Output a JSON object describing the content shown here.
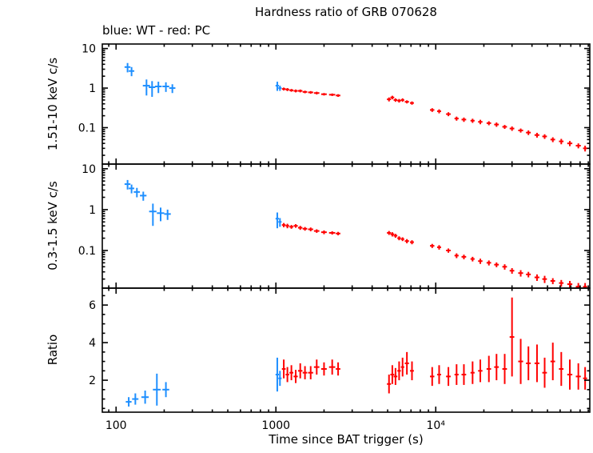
{
  "chart_data": {
    "type": "scatter",
    "title": "Hardness ratio of GRB 070628",
    "subtitle": "blue: WT - red: PC",
    "xlabel": "Time since BAT trigger (s)",
    "xscale": "log",
    "xlim": [
      82,
      92000
    ],
    "xticks": [
      {
        "v": 100,
        "label": "100"
      },
      {
        "v": 1000,
        "label": "1000"
      },
      {
        "v": 10000,
        "label": "10⁴"
      }
    ],
    "colors": {
      "WT": "#1e8fff",
      "PC": "#ff0000",
      "frame": "#000000"
    },
    "panels": [
      {
        "name": "hard-band",
        "ylabel": "1.51-10 keV c/s",
        "yscale": "log",
        "ylim": [
          0.012,
          13
        ],
        "yticks": [
          {
            "v": 10,
            "label": "10"
          },
          {
            "v": 1,
            "label": "1"
          },
          {
            "v": 0.1,
            "label": "0.1"
          }
        ],
        "series": [
          {
            "name": "WT",
            "color": "#1e8fff",
            "points": [
              [
                118,
                5,
                3.4,
                0.9
              ],
              [
                125,
                5,
                2.7,
                0.7
              ],
              [
                155,
                8,
                1.15,
                0.5
              ],
              [
                168,
                8,
                1.05,
                0.45
              ],
              [
                184,
                9,
                1.1,
                0.35
              ],
              [
                205,
                10,
                1.1,
                0.3
              ],
              [
                225,
                10,
                1.0,
                0.25
              ],
              [
                1020,
                25,
                1.15,
                0.3
              ],
              [
                1060,
                25,
                1.0,
                0.15
              ]
            ]
          },
          {
            "name": "PC",
            "color": "#ff0000",
            "points": [
              [
                1120,
                30,
                0.95,
                0.08
              ],
              [
                1180,
                30,
                0.92,
                0.08
              ],
              [
                1250,
                35,
                0.88,
                0.07
              ],
              [
                1330,
                40,
                0.85,
                0.07
              ],
              [
                1420,
                45,
                0.85,
                0.07
              ],
              [
                1520,
                50,
                0.8,
                0.06
              ],
              [
                1650,
                60,
                0.78,
                0.06
              ],
              [
                1800,
                70,
                0.75,
                0.06
              ],
              [
                2000,
                80,
                0.7,
                0.05
              ],
              [
                2250,
                100,
                0.68,
                0.05
              ],
              [
                2450,
                80,
                0.65,
                0.05
              ],
              [
                5100,
                150,
                0.52,
                0.06
              ],
              [
                5350,
                150,
                0.58,
                0.06
              ],
              [
                5600,
                150,
                0.5,
                0.05
              ],
              [
                5900,
                150,
                0.48,
                0.05
              ],
              [
                6200,
                150,
                0.5,
                0.05
              ],
              [
                6600,
                200,
                0.45,
                0.04
              ],
              [
                7100,
                200,
                0.42,
                0.04
              ],
              [
                9500,
                300,
                0.28,
                0.03
              ],
              [
                10500,
                300,
                0.26,
                0.03
              ],
              [
                12000,
                400,
                0.22,
                0.025
              ],
              [
                13500,
                400,
                0.17,
                0.02
              ],
              [
                15000,
                500,
                0.16,
                0.02
              ],
              [
                17000,
                500,
                0.15,
                0.018
              ],
              [
                19000,
                600,
                0.14,
                0.018
              ],
              [
                21500,
                700,
                0.13,
                0.015
              ],
              [
                24000,
                800,
                0.12,
                0.015
              ],
              [
                27000,
                900,
                0.105,
                0.012
              ],
              [
                30000,
                1000,
                0.095,
                0.012
              ],
              [
                34000,
                1200,
                0.085,
                0.01
              ],
              [
                38000,
                1300,
                0.075,
                0.01
              ],
              [
                43000,
                1500,
                0.065,
                0.009
              ],
              [
                48000,
                1600,
                0.06,
                0.008
              ],
              [
                54000,
                1800,
                0.05,
                0.007
              ],
              [
                61000,
                2000,
                0.045,
                0.007
              ],
              [
                69000,
                2500,
                0.04,
                0.006
              ],
              [
                78000,
                2800,
                0.035,
                0.005
              ],
              [
                86000,
                2500,
                0.03,
                0.005
              ]
            ]
          }
        ]
      },
      {
        "name": "soft-band",
        "ylabel": "0.3-1.5 keV c/s",
        "yscale": "log",
        "ylim": [
          0.012,
          13
        ],
        "yticks": [
          {
            "v": 10,
            "label": "10"
          },
          {
            "v": 1,
            "label": "1"
          },
          {
            "v": 0.1,
            "label": "0.1"
          }
        ],
        "series": [
          {
            "name": "WT",
            "color": "#1e8fff",
            "points": [
              [
                118,
                5,
                4.2,
                1.1
              ],
              [
                125,
                5,
                3.3,
                0.8
              ],
              [
                135,
                6,
                2.7,
                0.7
              ],
              [
                148,
                7,
                2.2,
                0.55
              ],
              [
                170,
                9,
                0.9,
                0.5
              ],
              [
                190,
                10,
                0.82,
                0.3
              ],
              [
                210,
                10,
                0.78,
                0.22
              ],
              [
                1020,
                25,
                0.6,
                0.25
              ],
              [
                1060,
                25,
                0.5,
                0.12
              ]
            ]
          },
          {
            "name": "PC",
            "color": "#ff0000",
            "points": [
              [
                1120,
                30,
                0.42,
                0.05
              ],
              [
                1180,
                30,
                0.4,
                0.05
              ],
              [
                1250,
                35,
                0.38,
                0.04
              ],
              [
                1330,
                40,
                0.4,
                0.04
              ],
              [
                1420,
                45,
                0.36,
                0.04
              ],
              [
                1520,
                50,
                0.34,
                0.035
              ],
              [
                1650,
                60,
                0.33,
                0.035
              ],
              [
                1800,
                70,
                0.3,
                0.03
              ],
              [
                2000,
                80,
                0.28,
                0.03
              ],
              [
                2250,
                100,
                0.27,
                0.025
              ],
              [
                2450,
                80,
                0.26,
                0.025
              ],
              [
                5100,
                150,
                0.27,
                0.03
              ],
              [
                5350,
                150,
                0.25,
                0.03
              ],
              [
                5600,
                150,
                0.23,
                0.025
              ],
              [
                5900,
                150,
                0.2,
                0.022
              ],
              [
                6200,
                150,
                0.19,
                0.02
              ],
              [
                6600,
                200,
                0.17,
                0.02
              ],
              [
                7100,
                200,
                0.16,
                0.018
              ],
              [
                9500,
                300,
                0.13,
                0.015
              ],
              [
                10500,
                300,
                0.12,
                0.015
              ],
              [
                12000,
                400,
                0.1,
                0.012
              ],
              [
                13500,
                400,
                0.075,
                0.01
              ],
              [
                15000,
                500,
                0.07,
                0.009
              ],
              [
                17000,
                500,
                0.062,
                0.008
              ],
              [
                19000,
                600,
                0.055,
                0.008
              ],
              [
                21500,
                700,
                0.05,
                0.007
              ],
              [
                24000,
                800,
                0.045,
                0.006
              ],
              [
                27000,
                900,
                0.04,
                0.006
              ],
              [
                30000,
                1000,
                0.032,
                0.005
              ],
              [
                34000,
                1200,
                0.028,
                0.005
              ],
              [
                38000,
                1300,
                0.026,
                0.004
              ],
              [
                43000,
                1500,
                0.022,
                0.004
              ],
              [
                48000,
                1600,
                0.02,
                0.004
              ],
              [
                54000,
                1800,
                0.018,
                0.003
              ],
              [
                61000,
                2000,
                0.016,
                0.003
              ],
              [
                69000,
                2500,
                0.015,
                0.003
              ],
              [
                78000,
                2800,
                0.013,
                0.003
              ],
              [
                86000,
                2500,
                0.013,
                0.003
              ]
            ]
          }
        ]
      },
      {
        "name": "ratio",
        "ylabel": "Ratio",
        "yscale": "linear",
        "ylim": [
          0.3,
          6.9
        ],
        "yticks": [
          {
            "v": 2,
            "label": "2"
          },
          {
            "v": 4,
            "label": "4"
          },
          {
            "v": 6,
            "label": "6"
          }
        ],
        "series": [
          {
            "name": "WT",
            "color": "#1e8fff",
            "points": [
              [
                120,
                5,
                0.85,
                0.25
              ],
              [
                132,
                6,
                1.0,
                0.3
              ],
              [
                152,
                8,
                1.1,
                0.35
              ],
              [
                180,
                10,
                1.5,
                0.85
              ],
              [
                205,
                10,
                1.5,
                0.4
              ],
              [
                1020,
                25,
                2.3,
                0.9
              ],
              [
                1060,
                25,
                2.1,
                0.4
              ]
            ]
          },
          {
            "name": "PC",
            "color": "#ff0000",
            "points": [
              [
                1120,
                30,
                2.6,
                0.5
              ],
              [
                1180,
                30,
                2.3,
                0.4
              ],
              [
                1250,
                35,
                2.4,
                0.4
              ],
              [
                1330,
                40,
                2.2,
                0.35
              ],
              [
                1420,
                45,
                2.5,
                0.4
              ],
              [
                1520,
                50,
                2.4,
                0.35
              ],
              [
                1650,
                60,
                2.4,
                0.35
              ],
              [
                1800,
                70,
                2.7,
                0.4
              ],
              [
                2000,
                80,
                2.6,
                0.35
              ],
              [
                2250,
                100,
                2.7,
                0.4
              ],
              [
                2450,
                80,
                2.6,
                0.35
              ],
              [
                5100,
                150,
                1.8,
                0.5
              ],
              [
                5350,
                150,
                2.3,
                0.5
              ],
              [
                5600,
                150,
                2.2,
                0.45
              ],
              [
                5900,
                150,
                2.5,
                0.5
              ],
              [
                6200,
                150,
                2.7,
                0.5
              ],
              [
                6600,
                200,
                2.9,
                0.6
              ],
              [
                7100,
                200,
                2.5,
                0.5
              ],
              [
                9500,
                300,
                2.2,
                0.5
              ],
              [
                10500,
                300,
                2.3,
                0.5
              ],
              [
                12000,
                400,
                2.2,
                0.5
              ],
              [
                13500,
                400,
                2.3,
                0.55
              ],
              [
                15000,
                500,
                2.3,
                0.55
              ],
              [
                17000,
                500,
                2.4,
                0.6
              ],
              [
                19000,
                600,
                2.5,
                0.6
              ],
              [
                21500,
                700,
                2.6,
                0.7
              ],
              [
                24000,
                800,
                2.7,
                0.7
              ],
              [
                27000,
                900,
                2.6,
                0.8
              ],
              [
                30000,
                1000,
                4.3,
                2.1
              ],
              [
                34000,
                1200,
                3.0,
                1.2
              ],
              [
                38000,
                1300,
                2.9,
                0.9
              ],
              [
                43000,
                1500,
                2.9,
                1.0
              ],
              [
                48000,
                1600,
                2.4,
                0.8
              ],
              [
                54000,
                1800,
                3.0,
                1.0
              ],
              [
                61000,
                2000,
                2.6,
                0.9
              ],
              [
                69000,
                2500,
                2.3,
                0.8
              ],
              [
                78000,
                2800,
                2.2,
                0.7
              ],
              [
                86000,
                2500,
                2.1,
                0.6
              ]
            ]
          }
        ]
      }
    ]
  }
}
